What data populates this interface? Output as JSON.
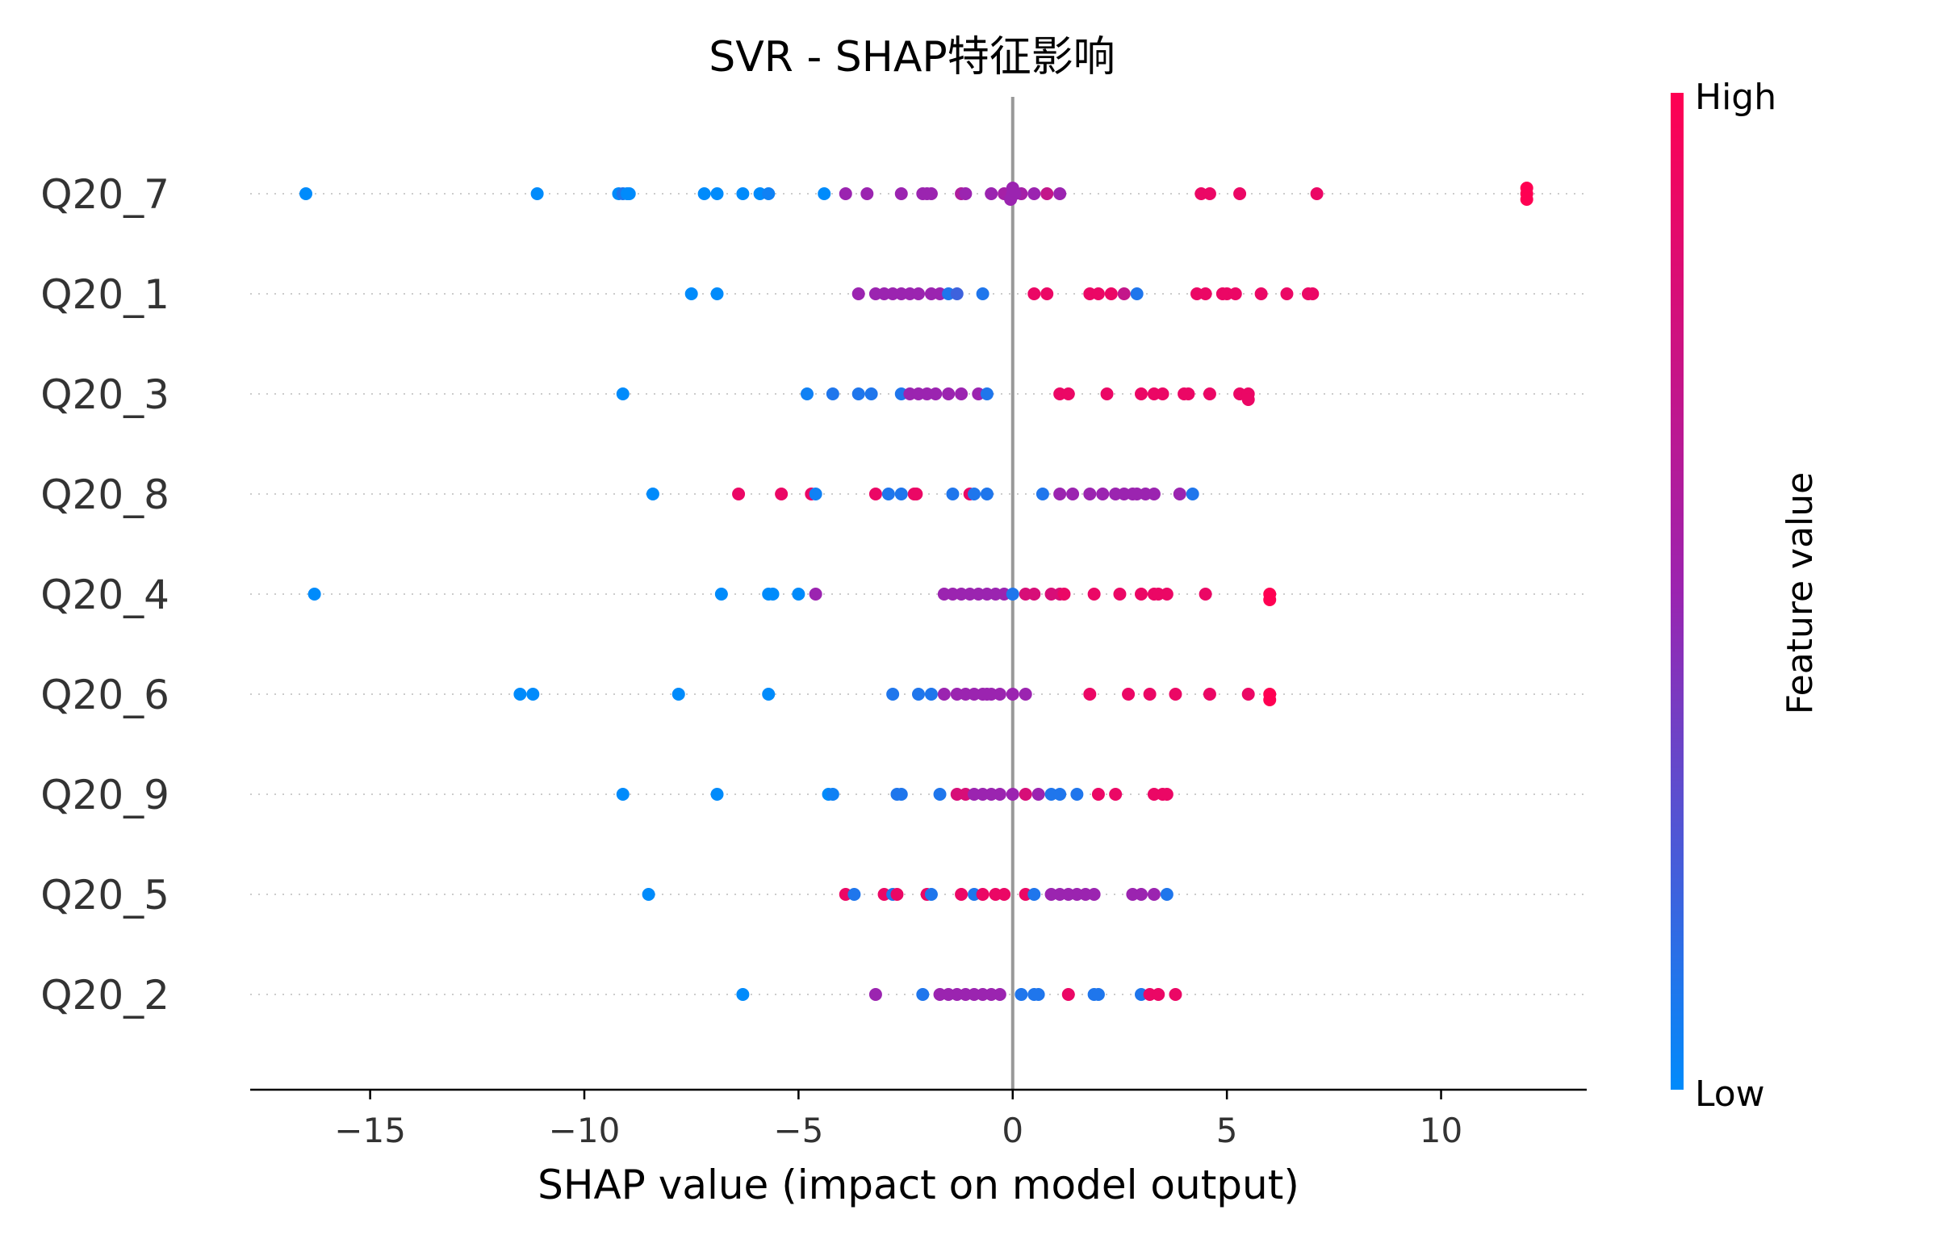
{
  "chart_data": {
    "type": "scatter",
    "title": "SVR - SHAP特征影响",
    "xlabel": "SHAP value (impact on model output)",
    "xlim": [
      -17.8,
      13.4
    ],
    "xticks": [
      -15,
      -10,
      -5,
      0,
      5,
      10
    ],
    "xtick_labels": [
      "−15",
      "−10",
      "−5",
      "0",
      "5",
      "10"
    ],
    "features": [
      "Q20_7",
      "Q20_1",
      "Q20_3",
      "Q20_8",
      "Q20_4",
      "Q20_6",
      "Q20_9",
      "Q20_5",
      "Q20_2"
    ],
    "colorbar": {
      "label": "Feature value",
      "high_label": "High",
      "low_label": "Low",
      "low_color": "#008bfb",
      "mid_color": "#9b24b0",
      "high_color": "#ff0052"
    },
    "zero_line_color": "#999999",
    "grid": false,
    "series": [
      {
        "feature": "Q20_7",
        "points": [
          [
            -16.5,
            0
          ],
          [
            -11.1,
            0
          ],
          [
            -9.2,
            0
          ],
          [
            -9.1,
            0.1
          ],
          [
            -9.0,
            0
          ],
          [
            -8.95,
            0
          ],
          [
            -7.2,
            0
          ],
          [
            -6.9,
            0
          ],
          [
            -6.3,
            0
          ],
          [
            -5.9,
            0
          ],
          [
            -5.7,
            0.05
          ],
          [
            -4.4,
            0
          ],
          [
            -3.9,
            0.5
          ],
          [
            -3.4,
            0.5
          ],
          [
            -2.6,
            0.5
          ],
          [
            -2.1,
            0.5
          ],
          [
            -2.0,
            0.5
          ],
          [
            -1.9,
            0.5
          ],
          [
            -1.2,
            0.6
          ],
          [
            -1.1,
            0.5
          ],
          [
            -0.5,
            0.5
          ],
          [
            -0.2,
            0.55
          ],
          [
            0.0,
            0.5
          ],
          [
            0.2,
            0.55
          ],
          [
            0.05,
            0.5
          ],
          [
            -0.05,
            0.5
          ],
          [
            0.0,
            0.5
          ],
          [
            0.5,
            0.5
          ],
          [
            0.8,
            0.7
          ],
          [
            1.1,
            0.5
          ],
          [
            4.4,
            0.9
          ],
          [
            4.6,
            0.9
          ],
          [
            5.3,
            0.9
          ],
          [
            7.1,
            0.9
          ],
          [
            12.0,
            1.0
          ],
          [
            12.0,
            1.0
          ],
          [
            12.0,
            1.0
          ]
        ]
      },
      {
        "feature": "Q20_1",
        "points": [
          [
            -7.5,
            0
          ],
          [
            -6.9,
            0
          ],
          [
            -3.6,
            0.5
          ],
          [
            -3.2,
            0.5
          ],
          [
            -3.0,
            0.5
          ],
          [
            -2.8,
            0.5
          ],
          [
            -2.6,
            0.5
          ],
          [
            -2.4,
            0.5
          ],
          [
            -2.2,
            0.5
          ],
          [
            -1.9,
            0.5
          ],
          [
            -1.7,
            0.5
          ],
          [
            -1.5,
            0.1
          ],
          [
            -1.3,
            0.2
          ],
          [
            -0.7,
            0.1
          ],
          [
            0.5,
            0.9
          ],
          [
            0.8,
            0.9
          ],
          [
            1.8,
            0.9
          ],
          [
            2.0,
            0.9
          ],
          [
            2.3,
            0.9
          ],
          [
            2.6,
            0.7
          ],
          [
            2.9,
            0.1
          ],
          [
            4.3,
            0.9
          ],
          [
            4.5,
            0.9
          ],
          [
            4.9,
            0.9
          ],
          [
            5.0,
            0.9
          ],
          [
            5.2,
            0.9
          ],
          [
            5.8,
            0.9
          ],
          [
            6.4,
            0.9
          ],
          [
            6.9,
            0.9
          ],
          [
            7.0,
            0.9
          ]
        ]
      },
      {
        "feature": "Q20_3",
        "points": [
          [
            -9.1,
            0
          ],
          [
            -4.8,
            0.05
          ],
          [
            -4.2,
            0.1
          ],
          [
            -3.6,
            0.1
          ],
          [
            -3.3,
            0.1
          ],
          [
            -2.6,
            0.1
          ],
          [
            -2.4,
            0.5
          ],
          [
            -2.2,
            0.5
          ],
          [
            -2.0,
            0.5
          ],
          [
            -1.8,
            0.5
          ],
          [
            -1.5,
            0.5
          ],
          [
            -1.2,
            0.5
          ],
          [
            -0.8,
            0.5
          ],
          [
            -0.6,
            0.1
          ],
          [
            1.1,
            0.9
          ],
          [
            1.3,
            0.9
          ],
          [
            2.2,
            0.9
          ],
          [
            3.0,
            0.9
          ],
          [
            3.3,
            0.9
          ],
          [
            3.5,
            0.9
          ],
          [
            4.0,
            0.9
          ],
          [
            4.1,
            0.9
          ],
          [
            4.6,
            0.9
          ],
          [
            5.3,
            0.9
          ],
          [
            5.5,
            0.9
          ],
          [
            5.5,
            0.9
          ]
        ]
      },
      {
        "feature": "Q20_8",
        "points": [
          [
            -8.4,
            0
          ],
          [
            -6.4,
            0.9
          ],
          [
            -5.4,
            0.9
          ],
          [
            -4.7,
            0.9
          ],
          [
            -4.6,
            0.05
          ],
          [
            -3.2,
            0.9
          ],
          [
            -2.9,
            0.1
          ],
          [
            -2.6,
            0.1
          ],
          [
            -2.3,
            0.9
          ],
          [
            -2.25,
            0.9
          ],
          [
            -1.4,
            0.1
          ],
          [
            -1.0,
            0.9
          ],
          [
            -0.9,
            0.1
          ],
          [
            -0.6,
            0.1
          ],
          [
            0.7,
            0.1
          ],
          [
            1.1,
            0.5
          ],
          [
            1.4,
            0.5
          ],
          [
            1.8,
            0.5
          ],
          [
            2.1,
            0.5
          ],
          [
            2.4,
            0.5
          ],
          [
            2.6,
            0.5
          ],
          [
            2.8,
            0.5
          ],
          [
            2.9,
            0.5
          ],
          [
            3.1,
            0.5
          ],
          [
            3.3,
            0.5
          ],
          [
            3.9,
            0.5
          ],
          [
            4.2,
            0.1
          ]
        ]
      },
      {
        "feature": "Q20_4",
        "points": [
          [
            -16.3,
            0
          ],
          [
            -6.8,
            0
          ],
          [
            -5.7,
            0
          ],
          [
            -5.6,
            0
          ],
          [
            -5.0,
            0
          ],
          [
            -4.6,
            0.5
          ],
          [
            -1.6,
            0.5
          ],
          [
            -1.4,
            0.5
          ],
          [
            -1.2,
            0.5
          ],
          [
            -1.0,
            0.5
          ],
          [
            -0.8,
            0.5
          ],
          [
            -0.6,
            0.5
          ],
          [
            -0.4,
            0.5
          ],
          [
            -0.2,
            0.5
          ],
          [
            0.0,
            0.1
          ],
          [
            0.3,
            0.8
          ],
          [
            0.5,
            0.8
          ],
          [
            0.9,
            0.8
          ],
          [
            1.1,
            0.8
          ],
          [
            1.2,
            0.9
          ],
          [
            1.9,
            0.9
          ],
          [
            2.5,
            0.9
          ],
          [
            3.0,
            0.9
          ],
          [
            3.3,
            0.9
          ],
          [
            3.4,
            0.9
          ],
          [
            3.6,
            0.9
          ],
          [
            4.5,
            0.9
          ],
          [
            6.0,
            1.0
          ],
          [
            6.0,
            1.0
          ]
        ]
      },
      {
        "feature": "Q20_6",
        "points": [
          [
            -11.5,
            0
          ],
          [
            -11.2,
            0
          ],
          [
            -7.8,
            0
          ],
          [
            -5.7,
            0
          ],
          [
            -2.8,
            0.1
          ],
          [
            -2.2,
            0.1
          ],
          [
            -1.9,
            0.1
          ],
          [
            -1.6,
            0.5
          ],
          [
            -1.3,
            0.5
          ],
          [
            -1.1,
            0.5
          ],
          [
            -0.9,
            0.5
          ],
          [
            -0.7,
            0.5
          ],
          [
            -0.6,
            0.5
          ],
          [
            -0.5,
            0.5
          ],
          [
            -0.3,
            0.5
          ],
          [
            0.0,
            0.5
          ],
          [
            0.3,
            0.5
          ],
          [
            1.8,
            0.9
          ],
          [
            2.7,
            0.9
          ],
          [
            3.2,
            0.9
          ],
          [
            3.8,
            0.9
          ],
          [
            4.6,
            0.9
          ],
          [
            5.5,
            0.9
          ],
          [
            6.0,
            1.0
          ],
          [
            6.0,
            1.0
          ]
        ]
      },
      {
        "feature": "Q20_9",
        "points": [
          [
            -9.1,
            0
          ],
          [
            -6.9,
            0
          ],
          [
            -4.3,
            0
          ],
          [
            -4.2,
            0.05
          ],
          [
            -2.7,
            0.1
          ],
          [
            -2.6,
            0.1
          ],
          [
            -1.7,
            0.1
          ],
          [
            -1.3,
            0.8
          ],
          [
            -1.1,
            0.8
          ],
          [
            -0.9,
            0.5
          ],
          [
            -0.7,
            0.5
          ],
          [
            -0.5,
            0.5
          ],
          [
            -0.3,
            0.5
          ],
          [
            0.0,
            0.5
          ],
          [
            0.3,
            0.8
          ],
          [
            0.6,
            0.5
          ],
          [
            0.9,
            0.1
          ],
          [
            1.1,
            0.1
          ],
          [
            1.5,
            0.1
          ],
          [
            2.0,
            0.9
          ],
          [
            2.4,
            0.9
          ],
          [
            3.3,
            0.9
          ],
          [
            3.5,
            0.9
          ],
          [
            3.6,
            0.9
          ]
        ]
      },
      {
        "feature": "Q20_5",
        "points": [
          [
            -8.5,
            0
          ],
          [
            -3.9,
            0.9
          ],
          [
            -3.7,
            0.1
          ],
          [
            -3.0,
            0.9
          ],
          [
            -2.8,
            0.1
          ],
          [
            -2.7,
            0.9
          ],
          [
            -2.0,
            0.9
          ],
          [
            -1.9,
            0.1
          ],
          [
            -1.2,
            0.9
          ],
          [
            -0.9,
            0.1
          ],
          [
            -0.7,
            0.9
          ],
          [
            -0.4,
            0.9
          ],
          [
            -0.2,
            0.9
          ],
          [
            0.3,
            0.9
          ],
          [
            0.5,
            0.1
          ],
          [
            0.9,
            0.5
          ],
          [
            1.1,
            0.5
          ],
          [
            1.3,
            0.5
          ],
          [
            1.5,
            0.5
          ],
          [
            1.7,
            0.5
          ],
          [
            1.9,
            0.5
          ],
          [
            2.8,
            0.5
          ],
          [
            3.0,
            0.5
          ],
          [
            3.3,
            0.5
          ],
          [
            3.6,
            0.1
          ]
        ]
      },
      {
        "feature": "Q20_2",
        "points": [
          [
            -6.3,
            0
          ],
          [
            -3.2,
            0.5
          ],
          [
            -2.1,
            0.1
          ],
          [
            -1.7,
            0.5
          ],
          [
            -1.5,
            0.5
          ],
          [
            -1.3,
            0.5
          ],
          [
            -1.1,
            0.5
          ],
          [
            -0.9,
            0.5
          ],
          [
            -0.7,
            0.5
          ],
          [
            -0.5,
            0.5
          ],
          [
            -0.3,
            0.5
          ],
          [
            0.2,
            0.1
          ],
          [
            0.5,
            0.1
          ],
          [
            0.6,
            0.1
          ],
          [
            1.3,
            0.9
          ],
          [
            1.9,
            0.1
          ],
          [
            2.0,
            0.1
          ],
          [
            3.0,
            0.1
          ],
          [
            3.2,
            0.9
          ],
          [
            3.4,
            0.9
          ],
          [
            3.8,
            0.9
          ]
        ]
      }
    ]
  }
}
